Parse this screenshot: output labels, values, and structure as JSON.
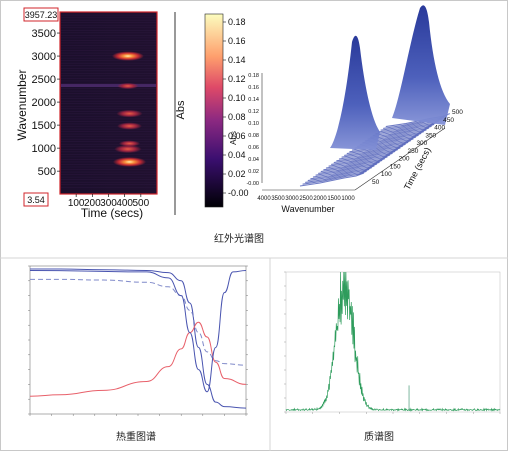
{
  "captions": {
    "ir": "红外光谱图",
    "tga": "热重图谱",
    "ms": "质谱图"
  },
  "colors": {
    "ir_marker": "#d0262b",
    "ir_surface": "#3e4fb0",
    "tga_weight": "#4a55b0",
    "tga_derivative": "#e8606a",
    "ms_trace": "#2e9c5c",
    "border": "#c8c8c8"
  },
  "chart_data": [
    {
      "type": "heatmap",
      "xlabel": "Time (secs)",
      "ylabel": "Wavenumber",
      "x_ticks": [
        100,
        200,
        300,
        400,
        500
      ],
      "xlim": [
        0,
        600
      ],
      "y_ticks": [
        500,
        1000,
        1500,
        2000,
        2500,
        3000,
        3500
      ],
      "ylim": [
        3.54,
        3957.23
      ],
      "marker_top": "3957.23",
      "marker_bottom": "3.54",
      "colorbar": {
        "label": "Abs",
        "ticks": [
          "0.18",
          "0.16",
          "0.14",
          "0.12",
          "0.10",
          "0.08",
          "0.06",
          "0.04",
          "0.02",
          "-0.00"
        ],
        "range": [
          -0.01,
          0.185
        ]
      },
      "hotspots": [
        {
          "time": 420,
          "wavenumber": 3000,
          "abs": 0.15
        },
        {
          "time": 420,
          "wavenumber": 2350,
          "abs": 0.06
        },
        {
          "time": 430,
          "wavenumber": 1750,
          "abs": 0.1
        },
        {
          "time": 430,
          "wavenumber": 1480,
          "abs": 0.09
        },
        {
          "time": 430,
          "wavenumber": 1100,
          "abs": 0.06
        },
        {
          "time": 420,
          "wavenumber": 980,
          "abs": 0.11
        },
        {
          "time": 430,
          "wavenumber": 700,
          "abs": 0.16
        }
      ]
    },
    {
      "type": "area",
      "subtype": "3d-waterfall",
      "xlabel": "Wavenumber",
      "ylabel": "Time (secs)",
      "zlabel": "Abs",
      "x_ticks": [
        "4000",
        "3500",
        "3000",
        "2500",
        "2000",
        "1500",
        "1000"
      ],
      "y_ticks": [
        "50",
        "100",
        "150",
        "200",
        "250",
        "300",
        "350",
        "400",
        "450",
        "500"
      ],
      "z_ticks": [
        "0.18",
        "0.16",
        "0.14",
        "0.12",
        "0.10",
        "0.08",
        "0.06",
        "0.04",
        "0.02",
        "-0.00"
      ],
      "peaks": [
        {
          "wavenumber": 3000,
          "time": 420,
          "abs": 0.16
        },
        {
          "wavenumber": 700,
          "time": 430,
          "abs": 0.18
        }
      ]
    },
    {
      "type": "line",
      "series": [
        {
          "values": [
            [
              30,
              98
            ],
            [
              100,
              98
            ],
            [
              200,
              97.5
            ],
            [
              300,
              97
            ],
            [
              350,
              95.5
            ],
            [
              380,
              90
            ],
            [
              400,
              75
            ],
            [
              420,
              45
            ],
            [
              440,
              20
            ],
            [
              460,
              8
            ],
            [
              480,
              5
            ],
            [
              530,
              4
            ]
          ]
        },
        {
          "values": [
            [
              30,
              91
            ],
            [
              100,
              91
            ],
            [
              200,
              90.5
            ],
            [
              300,
              89
            ],
            [
              350,
              86
            ],
            [
              380,
              80
            ],
            [
              400,
              70
            ],
            [
              420,
              55
            ],
            [
              440,
              42
            ],
            [
              460,
              36
            ],
            [
              480,
              34
            ],
            [
              530,
              33
            ]
          ]
        },
        {
          "values": [
            [
              30,
              12
            ],
            [
              100,
              13
            ],
            [
              200,
              16
            ],
            [
              300,
              22
            ],
            [
              350,
              32
            ],
            [
              380,
              44
            ],
            [
              400,
              55
            ],
            [
              420,
              62
            ],
            [
              440,
              52
            ],
            [
              460,
              35
            ],
            [
              480,
              24
            ],
            [
              530,
              20
            ]
          ]
        },
        {
          "values": [
            [
              30,
              97
            ],
            [
              300,
              96
            ],
            [
              350,
              92
            ],
            [
              380,
              80
            ],
            [
              400,
              55
            ],
            [
              420,
              30
            ],
            [
              440,
              15
            ],
            [
              460,
              45
            ],
            [
              480,
              82
            ],
            [
              500,
              96
            ],
            [
              530,
              97
            ]
          ]
        }
      ]
    },
    {
      "type": "line",
      "peak": {
        "x": 5.5,
        "y": 100
      },
      "secondary_peak": {
        "x": 11.5,
        "y": 19
      }
    }
  ]
}
